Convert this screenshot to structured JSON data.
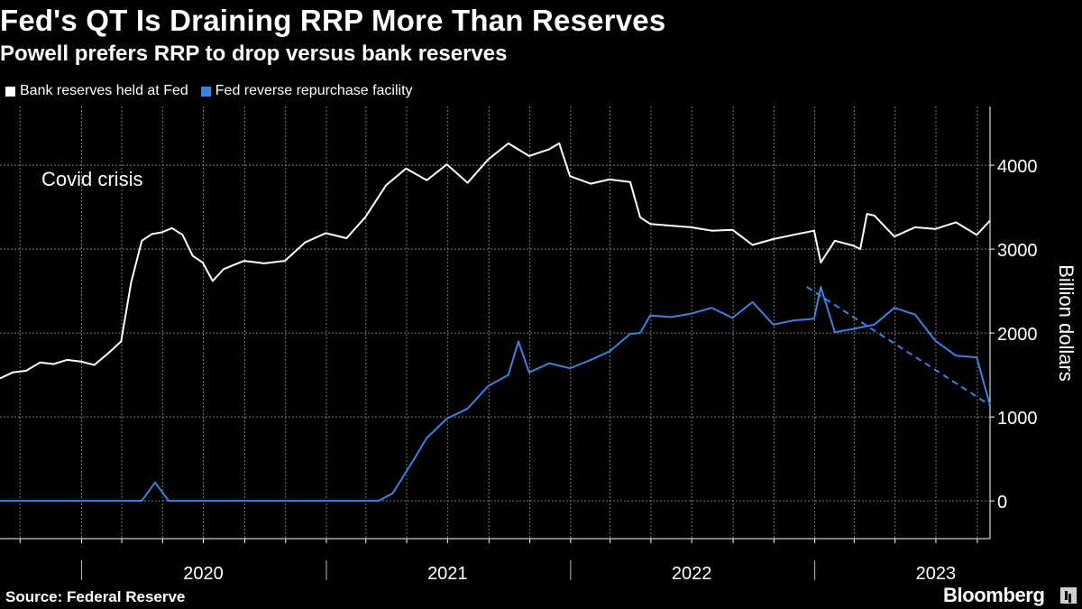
{
  "chart_data": {
    "type": "line",
    "title": "Fed's QT Is Draining RRP More Than Reserves",
    "subtitle": "Powell prefers RRP to drop versus bank reserves",
    "ylabel": "Billion dollars",
    "ylim": [
      -450,
      4700
    ],
    "yticks": [
      0,
      1000,
      2000,
      3000,
      4000
    ],
    "ytick_labels": [
      "0",
      "1000",
      "2000",
      "3000",
      "4000"
    ],
    "year_labels": [
      "2020",
      "2021",
      "2022",
      "2023"
    ],
    "year_label_dates": [
      "2020-07-01",
      "2021-07-01",
      "2022-07-01",
      "2023-07-01"
    ],
    "year_boundaries": [
      "2020-01-01",
      "2021-01-01",
      "2022-01-01",
      "2023-01-01"
    ],
    "xlim": [
      "2019-09-01",
      "2023-09-20"
    ],
    "x_grid": [
      "2019-10-01",
      "2020-01-01",
      "2020-03-01",
      "2020-05-01",
      "2020-07-01",
      "2020-09-01",
      "2020-11-01",
      "2021-01-01",
      "2021-03-01",
      "2021-05-01",
      "2021-07-01",
      "2021-09-01",
      "2021-11-01",
      "2022-01-01",
      "2022-03-01",
      "2022-05-01",
      "2022-07-01",
      "2022-09-01",
      "2022-11-01",
      "2023-01-01",
      "2023-03-01",
      "2023-05-01",
      "2023-07-01",
      "2023-09-01"
    ],
    "grid": true,
    "legend_position": "top-left",
    "annotation": "Covid crisis",
    "series": [
      {
        "name": "Bank reserves held at Fed",
        "color": "#ffffff",
        "x": [
          "2019-09-01",
          "2019-09-20",
          "2019-10-10",
          "2019-10-31",
          "2019-11-20",
          "2019-12-10",
          "2019-12-31",
          "2020-01-20",
          "2020-02-10",
          "2020-02-29",
          "2020-03-15",
          "2020-03-31",
          "2020-04-15",
          "2020-04-30",
          "2020-05-15",
          "2020-05-31",
          "2020-06-15",
          "2020-06-30",
          "2020-07-15",
          "2020-07-31",
          "2020-08-15",
          "2020-08-31",
          "2020-09-30",
          "2020-10-31",
          "2020-11-30",
          "2020-12-31",
          "2021-01-31",
          "2021-02-28",
          "2021-03-31",
          "2021-04-30",
          "2021-05-31",
          "2021-06-30",
          "2021-07-31",
          "2021-08-31",
          "2021-09-30",
          "2021-10-31",
          "2021-11-30",
          "2021-12-15",
          "2021-12-31",
          "2022-01-31",
          "2022-02-28",
          "2022-03-31",
          "2022-04-15",
          "2022-04-30",
          "2022-05-31",
          "2022-06-30",
          "2022-07-31",
          "2022-08-31",
          "2022-09-30",
          "2022-10-31",
          "2022-11-30",
          "2022-12-31",
          "2023-01-10",
          "2023-01-31",
          "2023-02-28",
          "2023-03-10",
          "2023-03-20",
          "2023-03-31",
          "2023-04-30",
          "2023-05-31",
          "2023-06-30",
          "2023-07-31",
          "2023-08-31",
          "2023-09-20"
        ],
        "values": [
          1460,
          1530,
          1550,
          1650,
          1630,
          1680,
          1660,
          1620,
          1760,
          1900,
          2600,
          3100,
          3180,
          3200,
          3250,
          3170,
          2920,
          2840,
          2620,
          2760,
          2810,
          2860,
          2830,
          2860,
          3080,
          3190,
          3130,
          3380,
          3760,
          3960,
          3820,
          4010,
          3790,
          4070,
          4260,
          4110,
          4190,
          4260,
          3870,
          3780,
          3830,
          3800,
          3380,
          3300,
          3280,
          3260,
          3220,
          3230,
          3050,
          3120,
          3170,
          3220,
          2840,
          3100,
          3040,
          3000,
          3420,
          3400,
          3150,
          3260,
          3240,
          3320,
          3170,
          3340
        ]
      },
      {
        "name": "Fed reverse repurchase facility",
        "color": "#3a82e6",
        "x": [
          "2019-09-01",
          "2020-02-15",
          "2020-03-31",
          "2020-04-20",
          "2020-05-10",
          "2020-12-31",
          "2021-03-20",
          "2021-04-10",
          "2021-05-10",
          "2021-05-31",
          "2021-06-30",
          "2021-07-31",
          "2021-08-31",
          "2021-09-30",
          "2021-10-15",
          "2021-10-31",
          "2021-11-30",
          "2021-12-31",
          "2022-01-31",
          "2022-02-28",
          "2022-03-31",
          "2022-04-15",
          "2022-04-30",
          "2022-05-31",
          "2022-06-30",
          "2022-07-31",
          "2022-08-31",
          "2022-09-30",
          "2022-10-31",
          "2022-11-30",
          "2022-12-31",
          "2023-01-10",
          "2023-01-31",
          "2023-02-28",
          "2023-03-31",
          "2023-04-30",
          "2023-05-31",
          "2023-06-30",
          "2023-07-31",
          "2023-08-31",
          "2023-09-20"
        ],
        "values": [
          0,
          0,
          0,
          220,
          0,
          0,
          0,
          90,
          470,
          750,
          980,
          1100,
          1370,
          1500,
          1900,
          1530,
          1640,
          1580,
          1680,
          1780,
          1990,
          2000,
          2210,
          2190,
          2230,
          2300,
          2180,
          2370,
          2100,
          2150,
          2170,
          2550,
          2010,
          2050,
          2100,
          2300,
          2220,
          1910,
          1730,
          1710,
          1140
        ]
      }
    ],
    "trend_line": {
      "color": "#3a82e6",
      "x": [
        "2022-12-20",
        "2023-09-20"
      ],
      "values": [
        2550,
        1140
      ]
    }
  }
}
